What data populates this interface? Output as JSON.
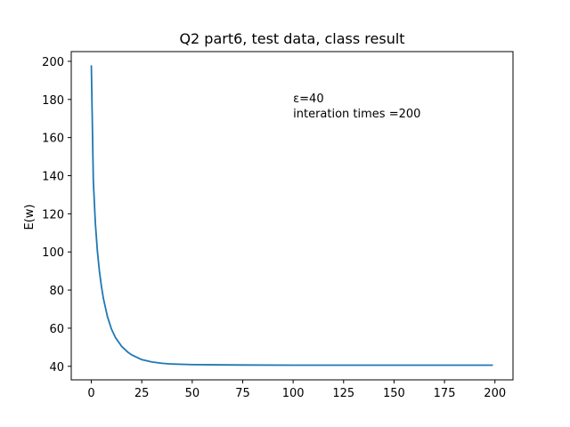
{
  "chart_data": {
    "type": "line",
    "title": "Q2 part6, test data, class result",
    "xlabel": "",
    "ylabel": "E(w)",
    "xlim": [
      -9.95,
      208.95
    ],
    "ylim": [
      32.9,
      205.1
    ],
    "xticks": [
      0,
      25,
      50,
      75,
      100,
      125,
      150,
      175,
      200
    ],
    "yticks": [
      40,
      60,
      80,
      100,
      120,
      140,
      160,
      180,
      200
    ],
    "grid": false,
    "series": [
      {
        "color": "#1f77b4",
        "x": [
          0,
          1,
          2,
          3,
          4,
          5,
          6,
          8,
          10,
          12,
          15,
          18,
          20,
          25,
          30,
          35,
          40,
          50,
          60,
          75,
          100,
          125,
          150,
          175,
          199
        ],
        "y": [
          197.9,
          137.0,
          115.0,
          100.5,
          90.0,
          82.0,
          75.5,
          66.0,
          59.5,
          55.0,
          50.5,
          47.5,
          46.0,
          43.5,
          42.3,
          41.6,
          41.2,
          40.9,
          40.8,
          40.7,
          40.6,
          40.6,
          40.6,
          40.6,
          40.6
        ]
      }
    ],
    "annotations": [
      {
        "text": "ε=40",
        "x": 100,
        "y": 178.5
      },
      {
        "text": "interation times =200",
        "x": 100,
        "y": 170.5
      }
    ]
  }
}
